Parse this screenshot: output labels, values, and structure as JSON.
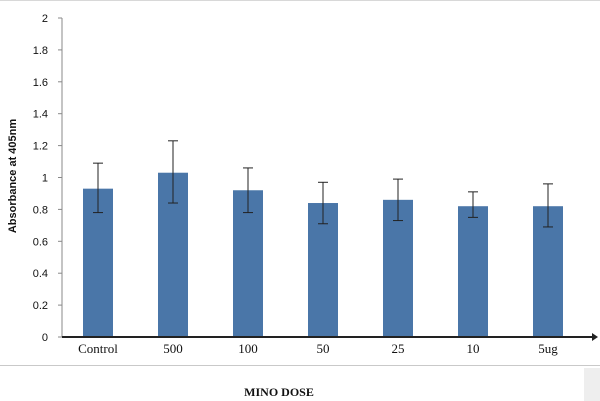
{
  "chart_data": {
    "type": "bar",
    "categories": [
      "Control",
      "500",
      "100",
      "50",
      "25",
      "10",
      "5ug"
    ],
    "values": [
      0.93,
      1.03,
      0.92,
      0.84,
      0.86,
      0.82,
      0.82
    ],
    "error_upper": [
      1.09,
      1.23,
      1.06,
      0.97,
      0.99,
      0.91,
      0.96
    ],
    "error_lower": [
      0.78,
      0.84,
      0.78,
      0.71,
      0.73,
      0.75,
      0.69
    ],
    "xlabel": "MINO DOSE",
    "ylabel": "Absorbance at 405nm",
    "ylim": [
      0,
      2
    ],
    "yticks": [
      "0",
      "0.2",
      "0.4",
      "0.6",
      "0.8",
      "1",
      "1.2",
      "1.4",
      "1.6",
      "1.8",
      "2"
    ],
    "grid": false,
    "bar_color": "#4a76a8"
  }
}
